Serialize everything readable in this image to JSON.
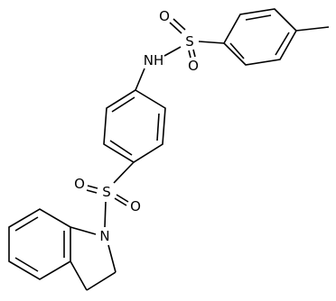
{
  "atoms": [
    {
      "label": "O"
    },
    {
      "label": "S"
    },
    {
      "label": "O"
    },
    {
      "label": "NH"
    },
    {
      "label": "O"
    },
    {
      "label": "S"
    },
    {
      "label": "O"
    },
    {
      "label": "N"
    }
  ]
}
